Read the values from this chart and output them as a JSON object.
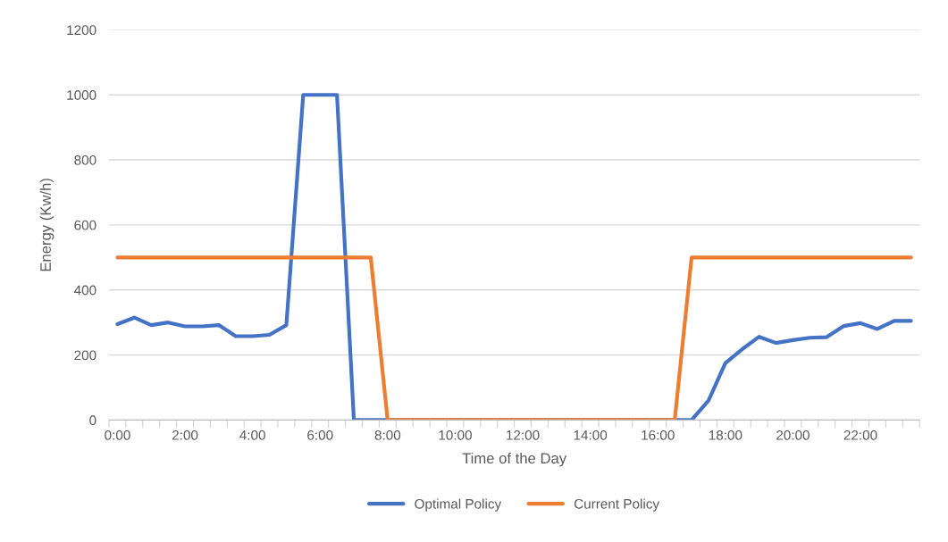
{
  "chart_data": {
    "type": "line",
    "xlabel": "Time of the Day",
    "ylabel": "Energy (Kw/h)",
    "categories": [
      "0:00",
      null,
      null,
      null,
      "2:00",
      null,
      null,
      null,
      "4:00",
      null,
      null,
      null,
      "6:00",
      null,
      null,
      null,
      "8:00",
      null,
      null,
      null,
      "10:00",
      null,
      null,
      null,
      "12:00",
      null,
      null,
      null,
      "14:00",
      null,
      null,
      null,
      "16:00",
      null,
      null,
      null,
      "18:00",
      null,
      null,
      null,
      "20:00",
      null,
      null,
      null,
      "22:00",
      null,
      null,
      null
    ],
    "series": [
      {
        "name": "Optimal Policy",
        "color": "#4472c4",
        "values": [
          295,
          315,
          292,
          300,
          288,
          288,
          292,
          258,
          258,
          262,
          292,
          1000,
          1000,
          1000,
          0,
          0,
          0,
          0,
          0,
          0,
          0,
          0,
          0,
          0,
          0,
          0,
          0,
          0,
          0,
          0,
          0,
          0,
          0,
          0,
          0,
          60,
          175,
          218,
          256,
          237,
          246,
          253,
          255,
          289,
          298,
          280,
          305,
          305
        ]
      },
      {
        "name": "Current Policy",
        "color": "#ed7d31",
        "values": [
          500,
          500,
          500,
          500,
          500,
          500,
          500,
          500,
          500,
          500,
          500,
          500,
          500,
          500,
          500,
          500,
          0,
          0,
          0,
          0,
          0,
          0,
          0,
          0,
          0,
          0,
          0,
          0,
          0,
          0,
          0,
          0,
          0,
          0,
          500,
          500,
          500,
          500,
          500,
          500,
          500,
          500,
          500,
          500,
          500,
          500,
          500,
          500
        ]
      }
    ],
    "ylim": [
      0,
      1200
    ],
    "yticks": [
      0,
      200,
      400,
      600,
      800,
      1000,
      1200
    ],
    "grid": "y",
    "legend": "bottom",
    "marker": "none",
    "line_style": "solid"
  }
}
